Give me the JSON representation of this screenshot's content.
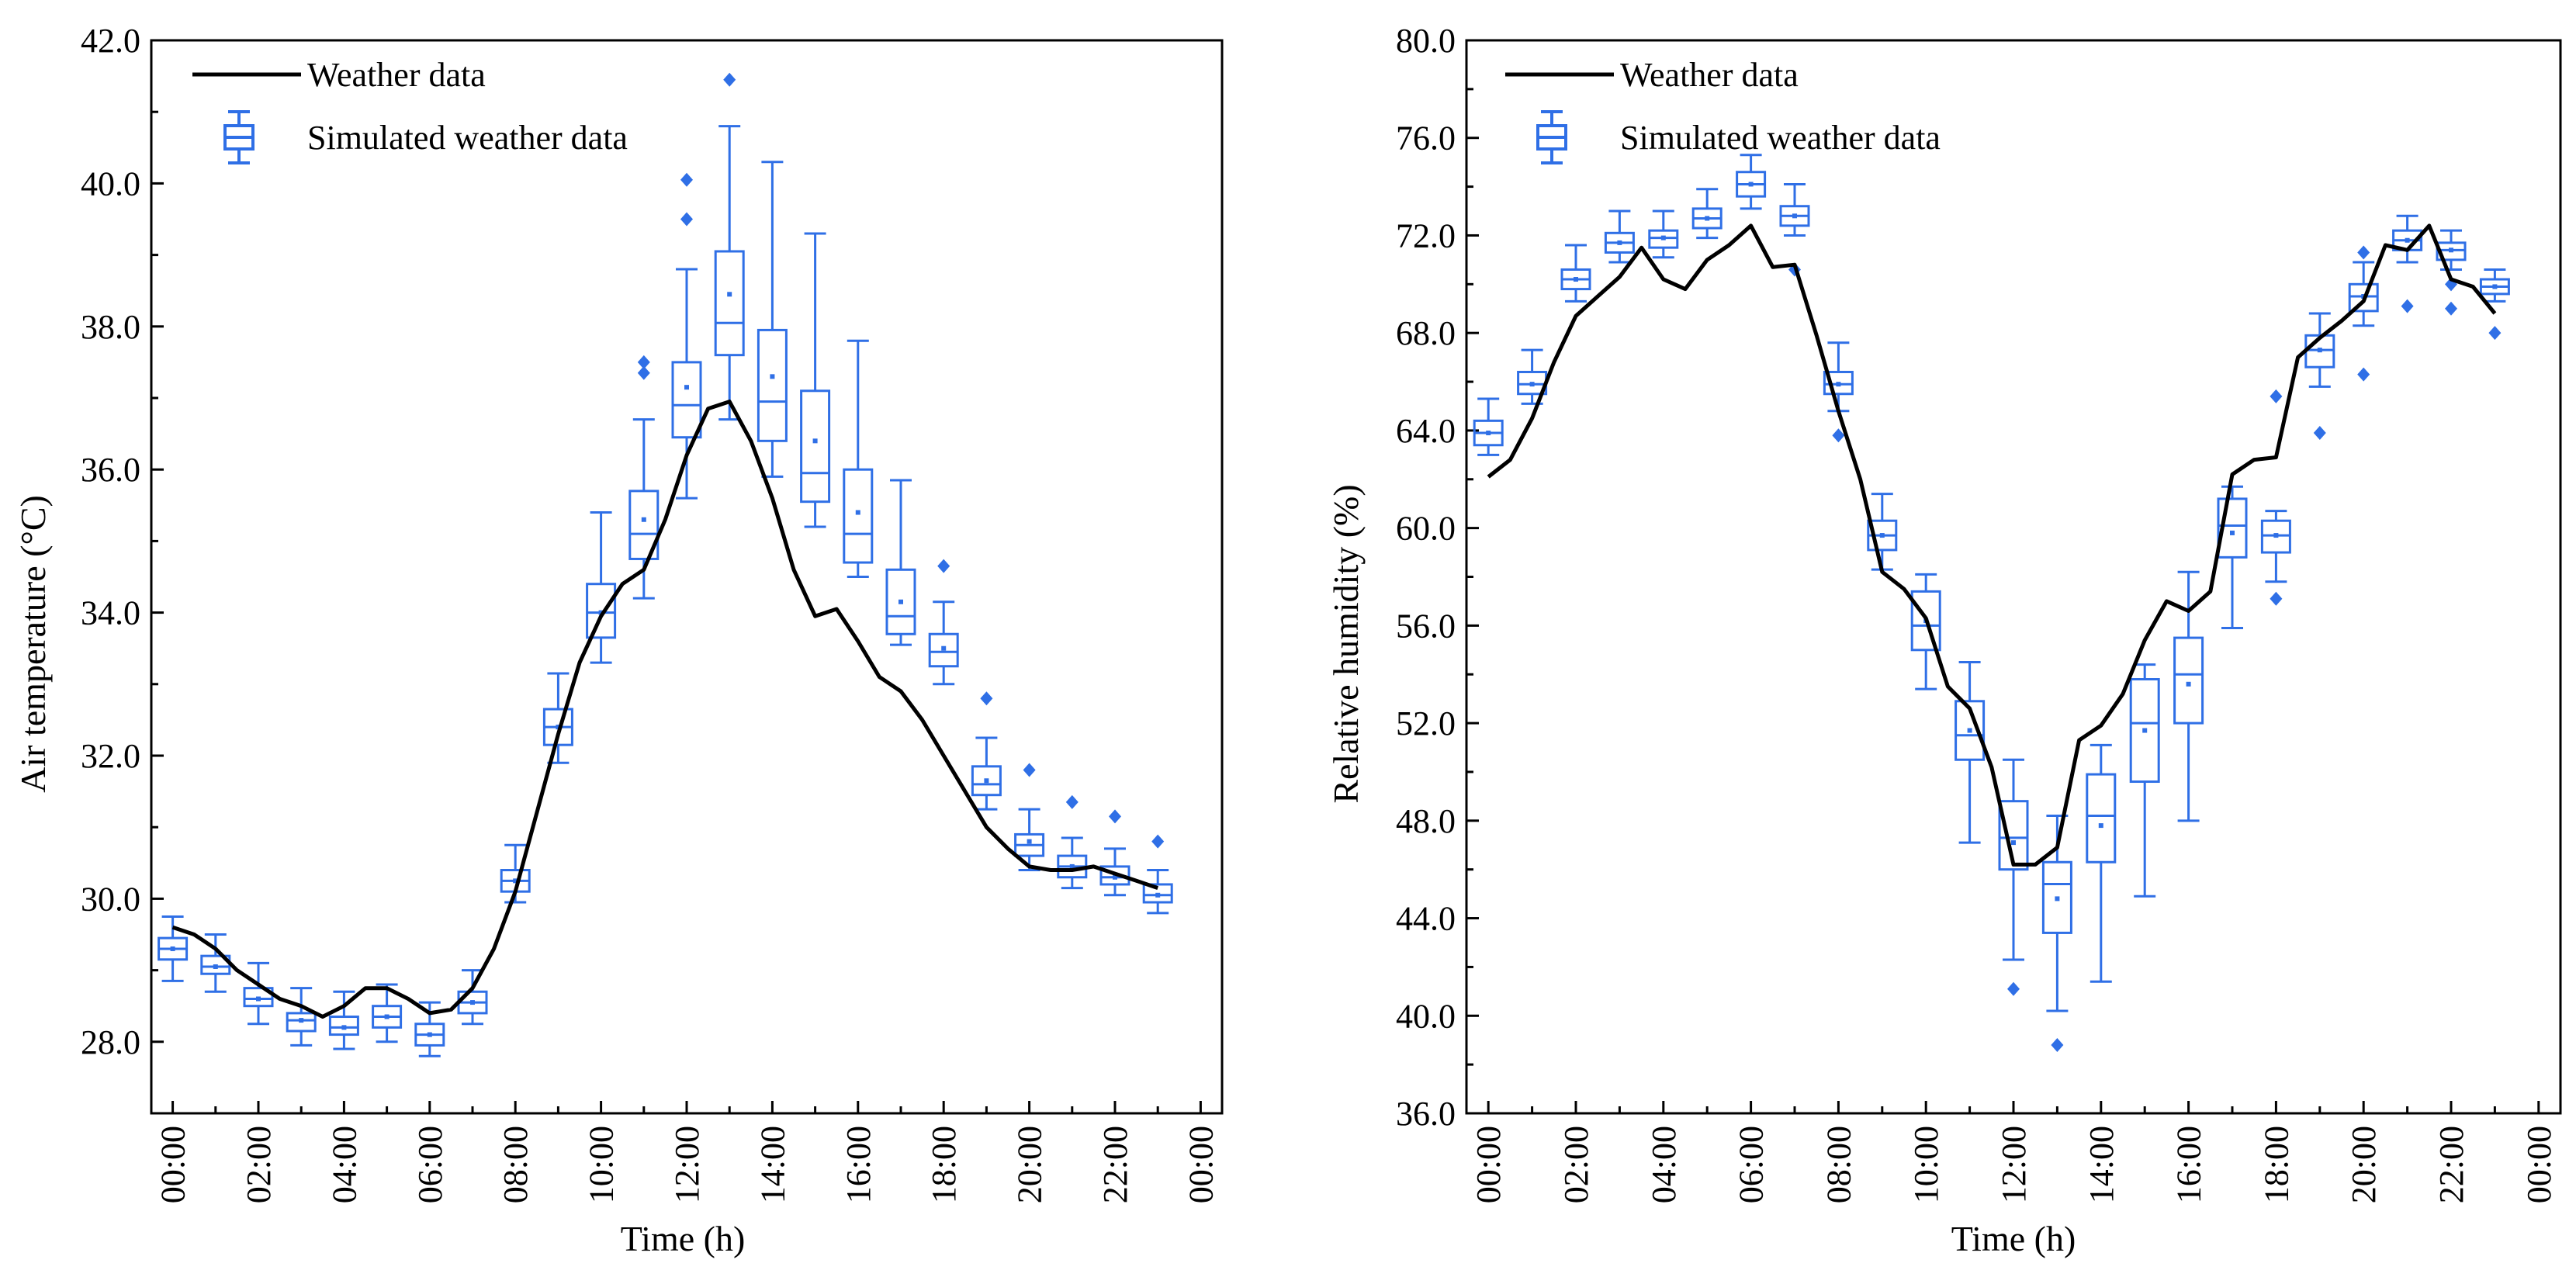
{
  "colors": {
    "weather_line": "#000000",
    "box": "#2f6fe6",
    "axis": "#000000"
  },
  "legend": {
    "line_label": "Weather data",
    "box_label": "Simulated weather data"
  },
  "chart_data": [
    {
      "type": "box",
      "title": "",
      "xlabel": "Time (h)",
      "ylabel": "Air temperature (°C)",
      "ylim": [
        27.0,
        42.0
      ],
      "xlim": [
        -0.5,
        24.5
      ],
      "yticks": [
        "28.0",
        "30.0",
        "32.0",
        "34.0",
        "36.0",
        "38.0",
        "40.0",
        "42.0"
      ],
      "ytick_values": [
        28,
        30,
        32,
        34,
        36,
        38,
        40,
        42
      ],
      "xticks": [
        "00:00",
        "02:00",
        "04:00",
        "06:00",
        "08:00",
        "10:00",
        "12:00",
        "14:00",
        "16:00",
        "18:00",
        "20:00",
        "22:00",
        "00:00"
      ],
      "xtick_values": [
        0,
        2,
        4,
        6,
        8,
        10,
        12,
        14,
        16,
        18,
        20,
        22,
        24
      ],
      "weather_line": {
        "name": "Weather data",
        "x": [
          0,
          0.5,
          1,
          1.5,
          2,
          2.5,
          3,
          3.5,
          4,
          4.5,
          5,
          5.5,
          6,
          6.5,
          7,
          7.5,
          8,
          8.5,
          9,
          9.5,
          10,
          10.5,
          11,
          11.5,
          12,
          12.5,
          13,
          13.5,
          14,
          14.5,
          15,
          15.5,
          16,
          16.5,
          17,
          17.5,
          18,
          18.5,
          19,
          19.5,
          20,
          20.5,
          21,
          21.5,
          22,
          22.5,
          23
        ],
        "y": [
          29.6,
          29.5,
          29.3,
          29.0,
          28.8,
          28.6,
          28.5,
          28.35,
          28.5,
          28.75,
          28.75,
          28.6,
          28.4,
          28.45,
          28.75,
          29.3,
          30.1,
          31.2,
          32.3,
          33.3,
          33.95,
          34.4,
          34.6,
          35.3,
          36.2,
          36.85,
          36.95,
          36.4,
          35.6,
          34.6,
          33.95,
          34.05,
          33.6,
          33.1,
          32.9,
          32.5,
          32.0,
          31.5,
          31.0,
          30.7,
          30.45,
          30.4,
          30.4,
          30.45,
          30.35,
          30.25,
          30.15
        ]
      },
      "boxes": [
        {
          "x": 0,
          "q1": 29.15,
          "med": 29.3,
          "q3": 29.45,
          "wlo": 28.85,
          "whi": 29.75,
          "mean": 29.3,
          "outliers": []
        },
        {
          "x": 1,
          "q1": 28.95,
          "med": 29.05,
          "q3": 29.2,
          "wlo": 28.7,
          "whi": 29.5,
          "mean": 29.05,
          "outliers": []
        },
        {
          "x": 2,
          "q1": 28.5,
          "med": 28.6,
          "q3": 28.75,
          "wlo": 28.25,
          "whi": 29.1,
          "mean": 28.6,
          "outliers": []
        },
        {
          "x": 3,
          "q1": 28.15,
          "med": 28.3,
          "q3": 28.4,
          "wlo": 27.95,
          "whi": 28.75,
          "mean": 28.3,
          "outliers": []
        },
        {
          "x": 4,
          "q1": 28.1,
          "med": 28.2,
          "q3": 28.35,
          "wlo": 27.9,
          "whi": 28.7,
          "mean": 28.2,
          "outliers": []
        },
        {
          "x": 5,
          "q1": 28.2,
          "med": 28.35,
          "q3": 28.5,
          "wlo": 28.0,
          "whi": 28.8,
          "mean": 28.35,
          "outliers": []
        },
        {
          "x": 6,
          "q1": 27.95,
          "med": 28.1,
          "q3": 28.25,
          "wlo": 27.8,
          "whi": 28.55,
          "mean": 28.1,
          "outliers": []
        },
        {
          "x": 7,
          "q1": 28.4,
          "med": 28.55,
          "q3": 28.7,
          "wlo": 28.25,
          "whi": 29.0,
          "mean": 28.55,
          "outliers": []
        },
        {
          "x": 8,
          "q1": 30.1,
          "med": 30.25,
          "q3": 30.4,
          "wlo": 29.95,
          "whi": 30.75,
          "mean": 30.25,
          "outliers": []
        },
        {
          "x": 9,
          "q1": 32.15,
          "med": 32.4,
          "q3": 32.65,
          "wlo": 31.9,
          "whi": 33.15,
          "mean": 32.4,
          "outliers": []
        },
        {
          "x": 10,
          "q1": 33.65,
          "med": 34.0,
          "q3": 34.4,
          "wlo": 33.3,
          "whi": 35.4,
          "mean": 34.0,
          "outliers": []
        },
        {
          "x": 11,
          "q1": 34.75,
          "med": 35.1,
          "q3": 35.7,
          "wlo": 34.2,
          "whi": 36.7,
          "mean": 35.3,
          "outliers": [
            37.35,
            37.5
          ]
        },
        {
          "x": 12,
          "q1": 36.45,
          "med": 36.9,
          "q3": 37.5,
          "wlo": 35.6,
          "whi": 38.8,
          "mean": 37.15,
          "outliers": [
            39.5,
            40.05
          ]
        },
        {
          "x": 13,
          "q1": 37.6,
          "med": 38.05,
          "q3": 39.05,
          "wlo": 36.7,
          "whi": 40.8,
          "mean": 38.45,
          "outliers": [
            41.45
          ]
        },
        {
          "x": 14,
          "q1": 36.4,
          "med": 36.95,
          "q3": 37.95,
          "wlo": 35.9,
          "whi": 40.3,
          "mean": 37.3,
          "outliers": []
        },
        {
          "x": 15,
          "q1": 35.55,
          "med": 35.95,
          "q3": 37.1,
          "wlo": 35.2,
          "whi": 39.3,
          "mean": 36.4,
          "outliers": []
        },
        {
          "x": 16,
          "q1": 34.7,
          "med": 35.1,
          "q3": 36.0,
          "wlo": 34.5,
          "whi": 37.8,
          "mean": 35.4,
          "outliers": []
        },
        {
          "x": 17,
          "q1": 33.7,
          "med": 33.95,
          "q3": 34.6,
          "wlo": 33.55,
          "whi": 35.85,
          "mean": 34.15,
          "outliers": []
        },
        {
          "x": 18,
          "q1": 33.25,
          "med": 33.45,
          "q3": 33.7,
          "wlo": 33.0,
          "whi": 34.15,
          "mean": 33.5,
          "outliers": [
            34.65
          ]
        },
        {
          "x": 19,
          "q1": 31.45,
          "med": 31.6,
          "q3": 31.85,
          "wlo": 31.25,
          "whi": 32.25,
          "mean": 31.65,
          "outliers": [
            32.8
          ]
        },
        {
          "x": 20,
          "q1": 30.6,
          "med": 30.75,
          "q3": 30.9,
          "wlo": 30.4,
          "whi": 31.25,
          "mean": 30.8,
          "outliers": [
            31.8
          ]
        },
        {
          "x": 21,
          "q1": 30.3,
          "med": 30.45,
          "q3": 30.6,
          "wlo": 30.15,
          "whi": 30.85,
          "mean": 30.45,
          "outliers": [
            31.35
          ]
        },
        {
          "x": 22,
          "q1": 30.2,
          "med": 30.3,
          "q3": 30.45,
          "wlo": 30.05,
          "whi": 30.7,
          "mean": 30.3,
          "outliers": [
            31.15
          ]
        },
        {
          "x": 23,
          "q1": 29.95,
          "med": 30.05,
          "q3": 30.2,
          "wlo": 29.8,
          "whi": 30.4,
          "mean": 30.05,
          "outliers": [
            30.8
          ]
        }
      ]
    },
    {
      "type": "box",
      "title": "",
      "xlabel": "Time (h)",
      "ylabel": "Relative humidity (%)",
      "ylim": [
        36.0,
        80.0
      ],
      "xlim": [
        -0.5,
        24.5
      ],
      "yticks": [
        "36.0",
        "40.0",
        "44.0",
        "48.0",
        "52.0",
        "56.0",
        "60.0",
        "64.0",
        "68.0",
        "72.0",
        "76.0",
        "80.0"
      ],
      "ytick_values": [
        36,
        40,
        44,
        48,
        52,
        56,
        60,
        64,
        68,
        72,
        76,
        80
      ],
      "xticks": [
        "00:00",
        "02:00",
        "04:00",
        "06:00",
        "08:00",
        "10:00",
        "12:00",
        "14:00",
        "16:00",
        "18:00",
        "20:00",
        "22:00",
        "00:00"
      ],
      "xtick_values": [
        0,
        2,
        4,
        6,
        8,
        10,
        12,
        14,
        16,
        18,
        20,
        22,
        24
      ],
      "weather_line": {
        "name": "Weather data",
        "x": [
          0,
          0.5,
          1,
          1.5,
          2,
          2.5,
          3,
          3.5,
          4,
          4.5,
          5,
          5.5,
          6,
          6.5,
          7,
          7.5,
          8,
          8.5,
          9,
          9.5,
          10,
          10.5,
          11,
          11.5,
          12,
          12.5,
          13,
          13.5,
          14,
          14.5,
          15,
          15.5,
          16,
          16.5,
          17,
          17.5,
          18,
          18.5,
          19,
          19.5,
          20,
          20.5,
          21,
          21.5,
          22,
          22.5,
          23
        ],
        "y": [
          62.1,
          62.8,
          64.5,
          66.8,
          68.7,
          69.5,
          70.3,
          71.5,
          70.2,
          69.8,
          71.0,
          71.6,
          72.4,
          70.7,
          70.8,
          67.9,
          64.8,
          62.0,
          58.2,
          57.5,
          56.3,
          53.5,
          52.6,
          50.2,
          46.2,
          46.2,
          46.9,
          51.3,
          51.9,
          53.2,
          55.4,
          57.0,
          56.6,
          57.4,
          62.2,
          62.8,
          62.9,
          67.0,
          67.8,
          68.5,
          69.3,
          71.6,
          71.4,
          72.4,
          70.2,
          69.9,
          68.8
        ]
      },
      "boxes": [
        {
          "x": 0,
          "q1": 63.4,
          "med": 63.9,
          "q3": 64.4,
          "wlo": 63.0,
          "whi": 65.3,
          "mean": 63.9,
          "outliers": []
        },
        {
          "x": 1,
          "q1": 65.5,
          "med": 65.9,
          "q3": 66.4,
          "wlo": 65.1,
          "whi": 67.3,
          "mean": 65.9,
          "outliers": []
        },
        {
          "x": 2,
          "q1": 69.8,
          "med": 70.2,
          "q3": 70.6,
          "wlo": 69.3,
          "whi": 71.6,
          "mean": 70.2,
          "outliers": []
        },
        {
          "x": 3,
          "q1": 71.3,
          "med": 71.7,
          "q3": 72.1,
          "wlo": 70.9,
          "whi": 73.0,
          "mean": 71.7,
          "outliers": []
        },
        {
          "x": 4,
          "q1": 71.5,
          "med": 71.9,
          "q3": 72.2,
          "wlo": 71.1,
          "whi": 73.0,
          "mean": 71.9,
          "outliers": []
        },
        {
          "x": 5,
          "q1": 72.3,
          "med": 72.7,
          "q3": 73.1,
          "wlo": 71.9,
          "whi": 73.9,
          "mean": 72.7,
          "outliers": []
        },
        {
          "x": 6,
          "q1": 73.6,
          "med": 74.1,
          "q3": 74.6,
          "wlo": 73.1,
          "whi": 75.3,
          "mean": 74.1,
          "outliers": []
        },
        {
          "x": 7,
          "q1": 72.4,
          "med": 72.8,
          "q3": 73.2,
          "wlo": 72.0,
          "whi": 74.1,
          "mean": 72.8,
          "outliers": [
            70.6
          ]
        },
        {
          "x": 8,
          "q1": 65.5,
          "med": 65.9,
          "q3": 66.4,
          "wlo": 64.8,
          "whi": 67.6,
          "mean": 65.9,
          "outliers": [
            63.8
          ]
        },
        {
          "x": 9,
          "q1": 59.1,
          "med": 59.7,
          "q3": 60.3,
          "wlo": 58.3,
          "whi": 61.4,
          "mean": 59.7,
          "outliers": []
        },
        {
          "x": 10,
          "q1": 55.0,
          "med": 56.0,
          "q3": 57.4,
          "wlo": 53.4,
          "whi": 58.1,
          "mean": 56.2,
          "outliers": []
        },
        {
          "x": 11,
          "q1": 50.5,
          "med": 51.5,
          "q3": 52.9,
          "wlo": 47.1,
          "whi": 54.5,
          "mean": 51.7,
          "outliers": []
        },
        {
          "x": 12,
          "q1": 46.0,
          "med": 47.3,
          "q3": 48.8,
          "wlo": 42.3,
          "whi": 50.5,
          "mean": 47.1,
          "outliers": [
            41.1
          ]
        },
        {
          "x": 13,
          "q1": 43.4,
          "med": 45.4,
          "q3": 46.3,
          "wlo": 40.2,
          "whi": 48.2,
          "mean": 44.8,
          "outliers": [
            38.8
          ]
        },
        {
          "x": 14,
          "q1": 46.3,
          "med": 48.2,
          "q3": 49.9,
          "wlo": 41.4,
          "whi": 51.1,
          "mean": 47.8,
          "outliers": []
        },
        {
          "x": 15,
          "q1": 49.6,
          "med": 52.0,
          "q3": 53.8,
          "wlo": 44.9,
          "whi": 54.4,
          "mean": 51.7,
          "outliers": []
        },
        {
          "x": 16,
          "q1": 52.0,
          "med": 54.0,
          "q3": 55.5,
          "wlo": 48.0,
          "whi": 58.2,
          "mean": 53.6,
          "outliers": []
        },
        {
          "x": 17,
          "q1": 58.8,
          "med": 60.1,
          "q3": 61.2,
          "wlo": 55.9,
          "whi": 61.7,
          "mean": 59.8,
          "outliers": []
        },
        {
          "x": 18,
          "q1": 59.0,
          "med": 59.7,
          "q3": 60.3,
          "wlo": 57.8,
          "whi": 60.7,
          "mean": 59.7,
          "outliers": [
            57.1,
            65.4
          ]
        },
        {
          "x": 19,
          "q1": 66.6,
          "med": 67.3,
          "q3": 67.9,
          "wlo": 65.8,
          "whi": 68.8,
          "mean": 67.3,
          "outliers": [
            63.9
          ]
        },
        {
          "x": 20,
          "q1": 68.9,
          "med": 69.5,
          "q3": 70.0,
          "wlo": 68.3,
          "whi": 70.9,
          "mean": 69.5,
          "outliers": [
            66.3,
            71.3
          ]
        },
        {
          "x": 21,
          "q1": 71.4,
          "med": 71.8,
          "q3": 72.2,
          "wlo": 70.9,
          "whi": 72.8,
          "mean": 71.8,
          "outliers": [
            69.1
          ]
        },
        {
          "x": 22,
          "q1": 71.0,
          "med": 71.4,
          "q3": 71.7,
          "wlo": 70.6,
          "whi": 72.2,
          "mean": 71.4,
          "outliers": [
            69.0,
            70.0
          ]
        },
        {
          "x": 23,
          "q1": 69.6,
          "med": 69.9,
          "q3": 70.2,
          "wlo": 69.3,
          "whi": 70.6,
          "mean": 69.9,
          "outliers": [
            68.0
          ]
        }
      ]
    }
  ]
}
